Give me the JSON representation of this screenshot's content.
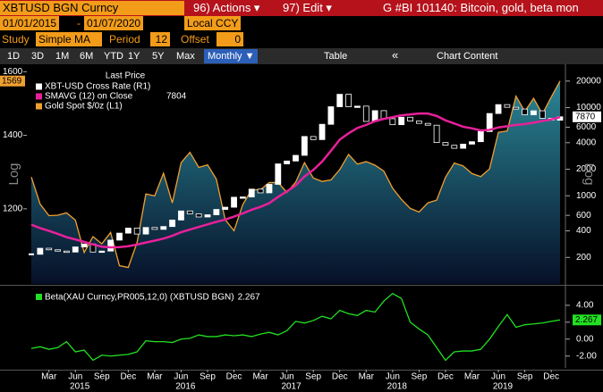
{
  "header": {
    "ticker": "XBTUSD BGN Curncy",
    "actions": "96) Actions ▾",
    "edit": "97) Edit ▾",
    "title": "G #BI 101140: Bitcoin, gold, beta mon"
  },
  "controls": {
    "start": "01/01/2015",
    "dash": "-",
    "end": "01/07/2020",
    "currency": "Local CCY",
    "study_label": "Study",
    "study": "Simple MA",
    "period_label": "Period",
    "period": 12,
    "offset_label": "Offset",
    "offset": 0
  },
  "toolbar": {
    "ranges": [
      "1D",
      "3D",
      "1M",
      "6M",
      "YTD",
      "1Y",
      "5Y",
      "Max"
    ],
    "frequency": "Monthly ▼",
    "table": "Table",
    "back": "«",
    "chart_content": "Chart Content"
  },
  "chart_data": [
    {
      "type": "combo",
      "legend_title": "Last Price",
      "axis_label": "Log",
      "log": true,
      "categories": [
        null,
        null,
        "Mar",
        null,
        null,
        "Jun",
        null,
        null,
        "Sep",
        null,
        null,
        "Dec",
        null,
        null,
        "Mar",
        null,
        null,
        "Jun",
        null,
        null,
        "Sep",
        null,
        null,
        "Dec",
        null,
        null,
        "Mar",
        null,
        null,
        "Jun",
        null,
        null,
        "Sep",
        null,
        null,
        "Dec",
        null,
        null,
        "Mar",
        null,
        null,
        "Jun",
        null,
        null,
        "Sep",
        null,
        null,
        "Dec",
        null,
        null,
        "Mar",
        null,
        null,
        "Jun",
        null,
        null,
        "Sep",
        null,
        null,
        "Dec",
        null
      ],
      "years": [
        "2015",
        "2016",
        "2017",
        "2018",
        "2019"
      ],
      "ylim": [
        1025,
        1625
      ],
      "yticks": [
        1200,
        1400,
        1600
      ],
      "y2lim": [
        100,
        31000
      ],
      "y2ticks": [
        200,
        400,
        600,
        1000,
        2000,
        4000,
        6000,
        10000,
        20000
      ],
      "series": [
        {
          "name": "XBT-USD Cross Rate (R1)",
          "type": "candlestick",
          "axis": "y2",
          "color": "#ffffff",
          "values": [
            217,
            254,
            244,
            236,
            230,
            263,
            284,
            230,
            236,
            314,
            377,
            430,
            368,
            437,
            416,
            448,
            531,
            673,
            624,
            575,
            609,
            700,
            742,
            963,
            970,
            1190,
            1080,
            1348,
            2300,
            2480,
            2875,
            4703,
            4338,
            6468,
            10233,
            14156,
            10221,
            10397,
            6973,
            9240,
            7494,
            6404,
            7780,
            7037,
            6626,
            6318,
            4017,
            3742,
            3457,
            3854,
            4105,
            5350,
            8574,
            10817,
            10085,
            9630,
            8293,
            9199,
            7569,
            7194,
            7870
          ]
        },
        {
          "name": "SMAVG (12) on Close",
          "type": "line",
          "axis": "y2",
          "color": "#e8209a",
          "values": [
            470,
            430,
            400,
            370,
            340,
            320,
            300,
            280,
            265,
            260,
            262,
            268,
            280,
            295,
            310,
            327,
            352,
            386,
            414,
            443,
            474,
            506,
            537,
            581,
            631,
            694,
            749,
            824,
            971,
            1122,
            1310,
            1654,
            1964,
            2444,
            3235,
            4335,
            5107,
            5874,
            6365,
            7023,
            7455,
            7781,
            8189,
            8383,
            8574,
            8561,
            8043,
            7175,
            6610,
            6065,
            5826,
            5502,
            5592,
            5960,
            6152,
            6368,
            6508,
            6748,
            7044,
            7332,
            7804
          ]
        },
        {
          "name": "Gold Spot $/0z (L1)",
          "type": "area",
          "color": "#f0a030",
          "values": [
            1283,
            1212,
            1183,
            1184,
            1190,
            1172,
            1095,
            1132,
            1115,
            1142,
            1065,
            1061,
            1118,
            1238,
            1233,
            1293,
            1215,
            1322,
            1351,
            1309,
            1316,
            1277,
            1173,
            1146,
            1211,
            1249,
            1249,
            1268,
            1268,
            1242,
            1269,
            1322,
            1280,
            1271,
            1275,
            1303,
            1345,
            1318,
            1325,
            1315,
            1299,
            1253,
            1224,
            1201,
            1192,
            1215,
            1222,
            1282,
            1321,
            1313,
            1292,
            1284,
            1305,
            1409,
            1413,
            1520,
            1472,
            1513,
            1464,
            1517,
            1569
          ]
        }
      ]
    },
    {
      "type": "line",
      "ylim": [
        -3.4,
        6.1
      ],
      "yticks": [
        {
          "value": 4,
          "label": "4.00"
        },
        {
          "value": 2,
          "label": "2.00"
        },
        {
          "value": 0,
          "label": "0.00"
        },
        {
          "value": -2,
          "label": "-2.00"
        }
      ],
      "series": [
        {
          "name": "Beta(XAU Curncy,PR005,12,0) (XBTUSD BGN)",
          "color": "#22e022",
          "values": [
            -1.1,
            -0.9,
            -1.2,
            -1.0,
            -0.3,
            -1.5,
            -1.3,
            -2.5,
            -1.9,
            -2.0,
            -1.9,
            -1.8,
            -1.5,
            -0.2,
            -0.3,
            -0.3,
            -0.4,
            0.0,
            0.1,
            0.5,
            0.3,
            0.3,
            0.5,
            0.4,
            0.5,
            0.3,
            0.6,
            0.8,
            0.5,
            1.0,
            2.1,
            1.9,
            2.2,
            2.7,
            2.4,
            3.4,
            3.0,
            2.8,
            3.4,
            3.2,
            4.5,
            5.4,
            4.8,
            2.0,
            1.2,
            0.5,
            -1.0,
            -2.5,
            -1.5,
            -1.4,
            -1.4,
            -1.2,
            0.0,
            1.5,
            2.9,
            1.4,
            1.7,
            1.8,
            1.9,
            2.1,
            2.267
          ]
        }
      ]
    }
  ]
}
